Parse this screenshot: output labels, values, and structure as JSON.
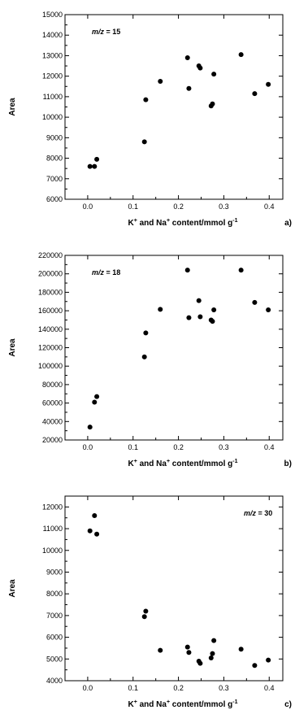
{
  "chart_data": [
    {
      "type": "scatter",
      "panel_label": "a)",
      "annotation": {
        "prefix": "m/z",
        "suffix": " = 15"
      },
      "ylabel": "Area",
      "xlabel": {
        "p1": "K",
        "s1": "+",
        "p2": " and Na",
        "s2": "+",
        "p3": " content/mmol g",
        "s3": "-1"
      },
      "xlim": [
        -0.05,
        0.43
      ],
      "ylim": [
        6000,
        15000
      ],
      "xticks": [
        0.0,
        0.1,
        0.2,
        0.3,
        0.4
      ],
      "xtick_labels": [
        "0.0",
        "0.1",
        "0.2",
        "0.3",
        "0.4"
      ],
      "yticks": [
        6000,
        7000,
        8000,
        9000,
        10000,
        11000,
        12000,
        13000,
        14000,
        15000
      ],
      "ytick_labels": [
        "6000",
        "7000",
        "8000",
        "9000",
        "10000",
        "11000",
        "12000",
        "13000",
        "14000",
        "15000"
      ],
      "points": [
        {
          "x": 0.005,
          "y": 7600
        },
        {
          "x": 0.015,
          "y": 7600
        },
        {
          "x": 0.02,
          "y": 7950
        },
        {
          "x": 0.125,
          "y": 8800
        },
        {
          "x": 0.128,
          "y": 10850
        },
        {
          "x": 0.16,
          "y": 11750
        },
        {
          "x": 0.22,
          "y": 12900
        },
        {
          "x": 0.223,
          "y": 11400
        },
        {
          "x": 0.245,
          "y": 12500
        },
        {
          "x": 0.248,
          "y": 12400
        },
        {
          "x": 0.272,
          "y": 10550
        },
        {
          "x": 0.275,
          "y": 10650
        },
        {
          "x": 0.278,
          "y": 12100
        },
        {
          "x": 0.338,
          "y": 13050
        },
        {
          "x": 0.368,
          "y": 11150
        },
        {
          "x": 0.398,
          "y": 11600
        }
      ]
    },
    {
      "type": "scatter",
      "panel_label": "b)",
      "annotation": {
        "prefix": "m/z",
        "suffix": " = 18"
      },
      "ylabel": "Area",
      "xlabel": {
        "p1": "K",
        "s1": "+",
        "p2": " and Na",
        "s2": "+",
        "p3": " content/mmol g",
        "s3": "-1"
      },
      "xlim": [
        -0.05,
        0.43
      ],
      "ylim": [
        20000,
        220000
      ],
      "xticks": [
        0.0,
        0.1,
        0.2,
        0.3,
        0.4
      ],
      "xtick_labels": [
        "0.0",
        "0.1",
        "0.2",
        "0.3",
        "0.4"
      ],
      "yticks": [
        20000,
        40000,
        60000,
        80000,
        100000,
        120000,
        140000,
        160000,
        180000,
        200000,
        220000
      ],
      "ytick_labels": [
        "20000",
        "40000",
        "60000",
        "80000",
        "100000",
        "120000",
        "140000",
        "160000",
        "180000",
        "200000",
        "220000"
      ],
      "points": [
        {
          "x": 0.005,
          "y": 34000
        },
        {
          "x": 0.015,
          "y": 61000
        },
        {
          "x": 0.02,
          "y": 67000
        },
        {
          "x": 0.125,
          "y": 110000
        },
        {
          "x": 0.128,
          "y": 136000
        },
        {
          "x": 0.16,
          "y": 161500
        },
        {
          "x": 0.22,
          "y": 204000
        },
        {
          "x": 0.223,
          "y": 152500
        },
        {
          "x": 0.245,
          "y": 171000
        },
        {
          "x": 0.248,
          "y": 153500
        },
        {
          "x": 0.272,
          "y": 150000
        },
        {
          "x": 0.275,
          "y": 148500
        },
        {
          "x": 0.278,
          "y": 161000
        },
        {
          "x": 0.338,
          "y": 204000
        },
        {
          "x": 0.368,
          "y": 169000
        },
        {
          "x": 0.398,
          "y": 161000
        }
      ]
    },
    {
      "type": "scatter",
      "panel_label": "c)",
      "annotation": {
        "prefix": "m/z",
        "suffix": " = 30"
      },
      "ylabel": "Area",
      "xlabel": {
        "p1": "K",
        "s1": "+",
        "p2": " and Na",
        "s2": "+",
        "p3": " content/mmol g",
        "s3": "-1"
      },
      "xlim": [
        -0.05,
        0.43
      ],
      "ylim": [
        4000,
        12500
      ],
      "xticks": [
        0.0,
        0.1,
        0.2,
        0.3,
        0.4
      ],
      "xtick_labels": [
        "0.0",
        "0.1",
        "0.2",
        "0.3",
        "0.4"
      ],
      "yticks": [
        4000,
        5000,
        6000,
        7000,
        8000,
        9000,
        10000,
        11000,
        12000
      ],
      "ytick_labels": [
        "4000",
        "5000",
        "6000",
        "7000",
        "8000",
        "9000",
        "10000",
        "11000",
        "12000"
      ],
      "points": [
        {
          "x": 0.005,
          "y": 10900
        },
        {
          "x": 0.015,
          "y": 11600
        },
        {
          "x": 0.02,
          "y": 10750
        },
        {
          "x": 0.125,
          "y": 6950
        },
        {
          "x": 0.128,
          "y": 7200
        },
        {
          "x": 0.16,
          "y": 5400
        },
        {
          "x": 0.22,
          "y": 5550
        },
        {
          "x": 0.223,
          "y": 5300
        },
        {
          "x": 0.245,
          "y": 4900
        },
        {
          "x": 0.248,
          "y": 4800
        },
        {
          "x": 0.272,
          "y": 5050
        },
        {
          "x": 0.275,
          "y": 5250
        },
        {
          "x": 0.278,
          "y": 5850
        },
        {
          "x": 0.338,
          "y": 5450
        },
        {
          "x": 0.368,
          "y": 4700
        },
        {
          "x": 0.398,
          "y": 4950
        }
      ]
    }
  ]
}
